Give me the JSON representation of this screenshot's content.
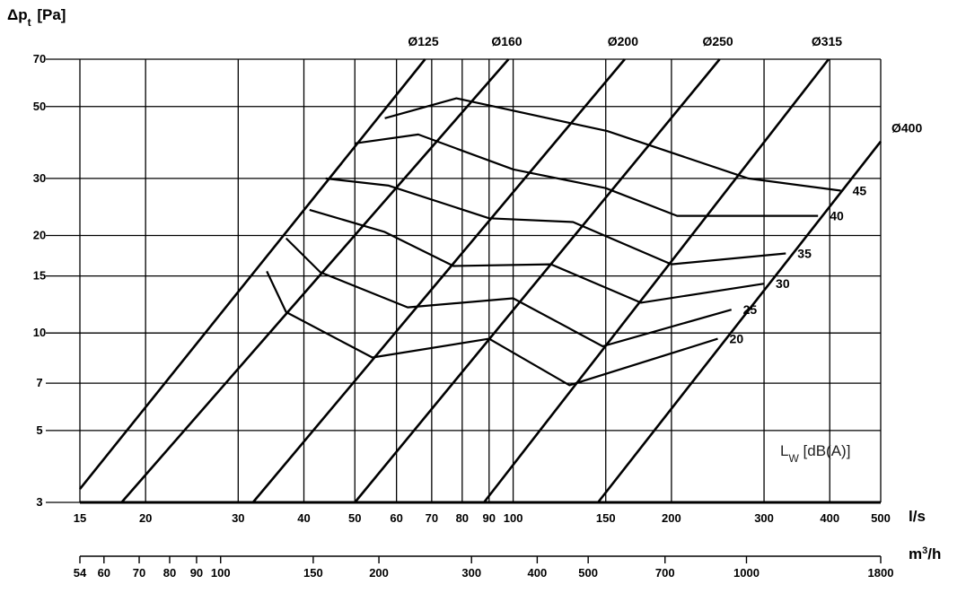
{
  "chart_data": {
    "type": "line",
    "scale": "log-log",
    "y_title": "Δpt [Pa]",
    "x_unit": "l/s",
    "x2_unit": "m³/h",
    "legend_text": "LW [dB(A)]",
    "x_ticks": [
      15,
      20,
      30,
      40,
      50,
      60,
      70,
      80,
      90,
      100,
      150,
      200,
      300,
      400,
      500
    ],
    "x2_ticks": [
      54,
      60,
      70,
      80,
      90,
      100,
      150,
      200,
      300,
      400,
      500,
      700,
      1000,
      1800
    ],
    "y_ticks": [
      3,
      5,
      7,
      10,
      15,
      20,
      30,
      50,
      70
    ],
    "xlim": [
      15,
      500
    ],
    "ylim": [
      3,
      70
    ],
    "duct_series": [
      {
        "name": "Ø125",
        "points": [
          [
            15,
            3.3
          ],
          [
            68,
            70
          ]
        ]
      },
      {
        "name": "Ø160",
        "points": [
          [
            18,
            3
          ],
          [
            98,
            70
          ]
        ]
      },
      {
        "name": "Ø200",
        "points": [
          [
            32,
            3
          ],
          [
            163,
            70
          ]
        ]
      },
      {
        "name": "Ø250",
        "points": [
          [
            50,
            3
          ],
          [
            247,
            70
          ]
        ]
      },
      {
        "name": "Ø315",
        "points": [
          [
            88,
            3
          ],
          [
            398,
            70
          ]
        ]
      },
      {
        "name": "Ø400",
        "points": [
          [
            145,
            3
          ],
          [
            500,
            39
          ]
        ]
      }
    ],
    "sound_series": [
      {
        "name": "45",
        "points": [
          [
            57,
            46
          ],
          [
            78,
            53
          ],
          [
            151,
            42
          ],
          [
            280,
            30
          ],
          [
            420,
            27.5
          ]
        ]
      },
      {
        "name": "40",
        "points": [
          [
            50,
            38.5
          ],
          [
            66,
            41
          ],
          [
            100,
            32
          ],
          [
            150,
            28
          ],
          [
            205,
            23
          ],
          [
            380,
            23
          ]
        ]
      },
      {
        "name": "35",
        "points": [
          [
            44,
            30
          ],
          [
            58,
            28.5
          ],
          [
            90,
            22.6
          ],
          [
            130,
            22
          ],
          [
            200,
            16.3
          ],
          [
            330,
            17.6
          ]
        ]
      },
      {
        "name": "30",
        "points": [
          [
            41,
            24
          ],
          [
            57,
            20.5
          ],
          [
            77,
            16.1
          ],
          [
            118,
            16.3
          ],
          [
            175,
            12.4
          ],
          [
            300,
            14.2
          ]
        ]
      },
      {
        "name": "25",
        "points": [
          [
            37,
            19.6
          ],
          [
            43,
            15.4
          ],
          [
            63,
            12
          ],
          [
            100,
            12.8
          ],
          [
            148,
            9.1
          ],
          [
            260,
            11.8
          ]
        ]
      },
      {
        "name": "20",
        "points": [
          [
            34,
            15.5
          ],
          [
            37,
            11.6
          ],
          [
            54,
            8.4
          ],
          [
            90,
            9.6
          ],
          [
            128,
            6.9
          ],
          [
            245,
            9.6
          ]
        ]
      }
    ]
  }
}
